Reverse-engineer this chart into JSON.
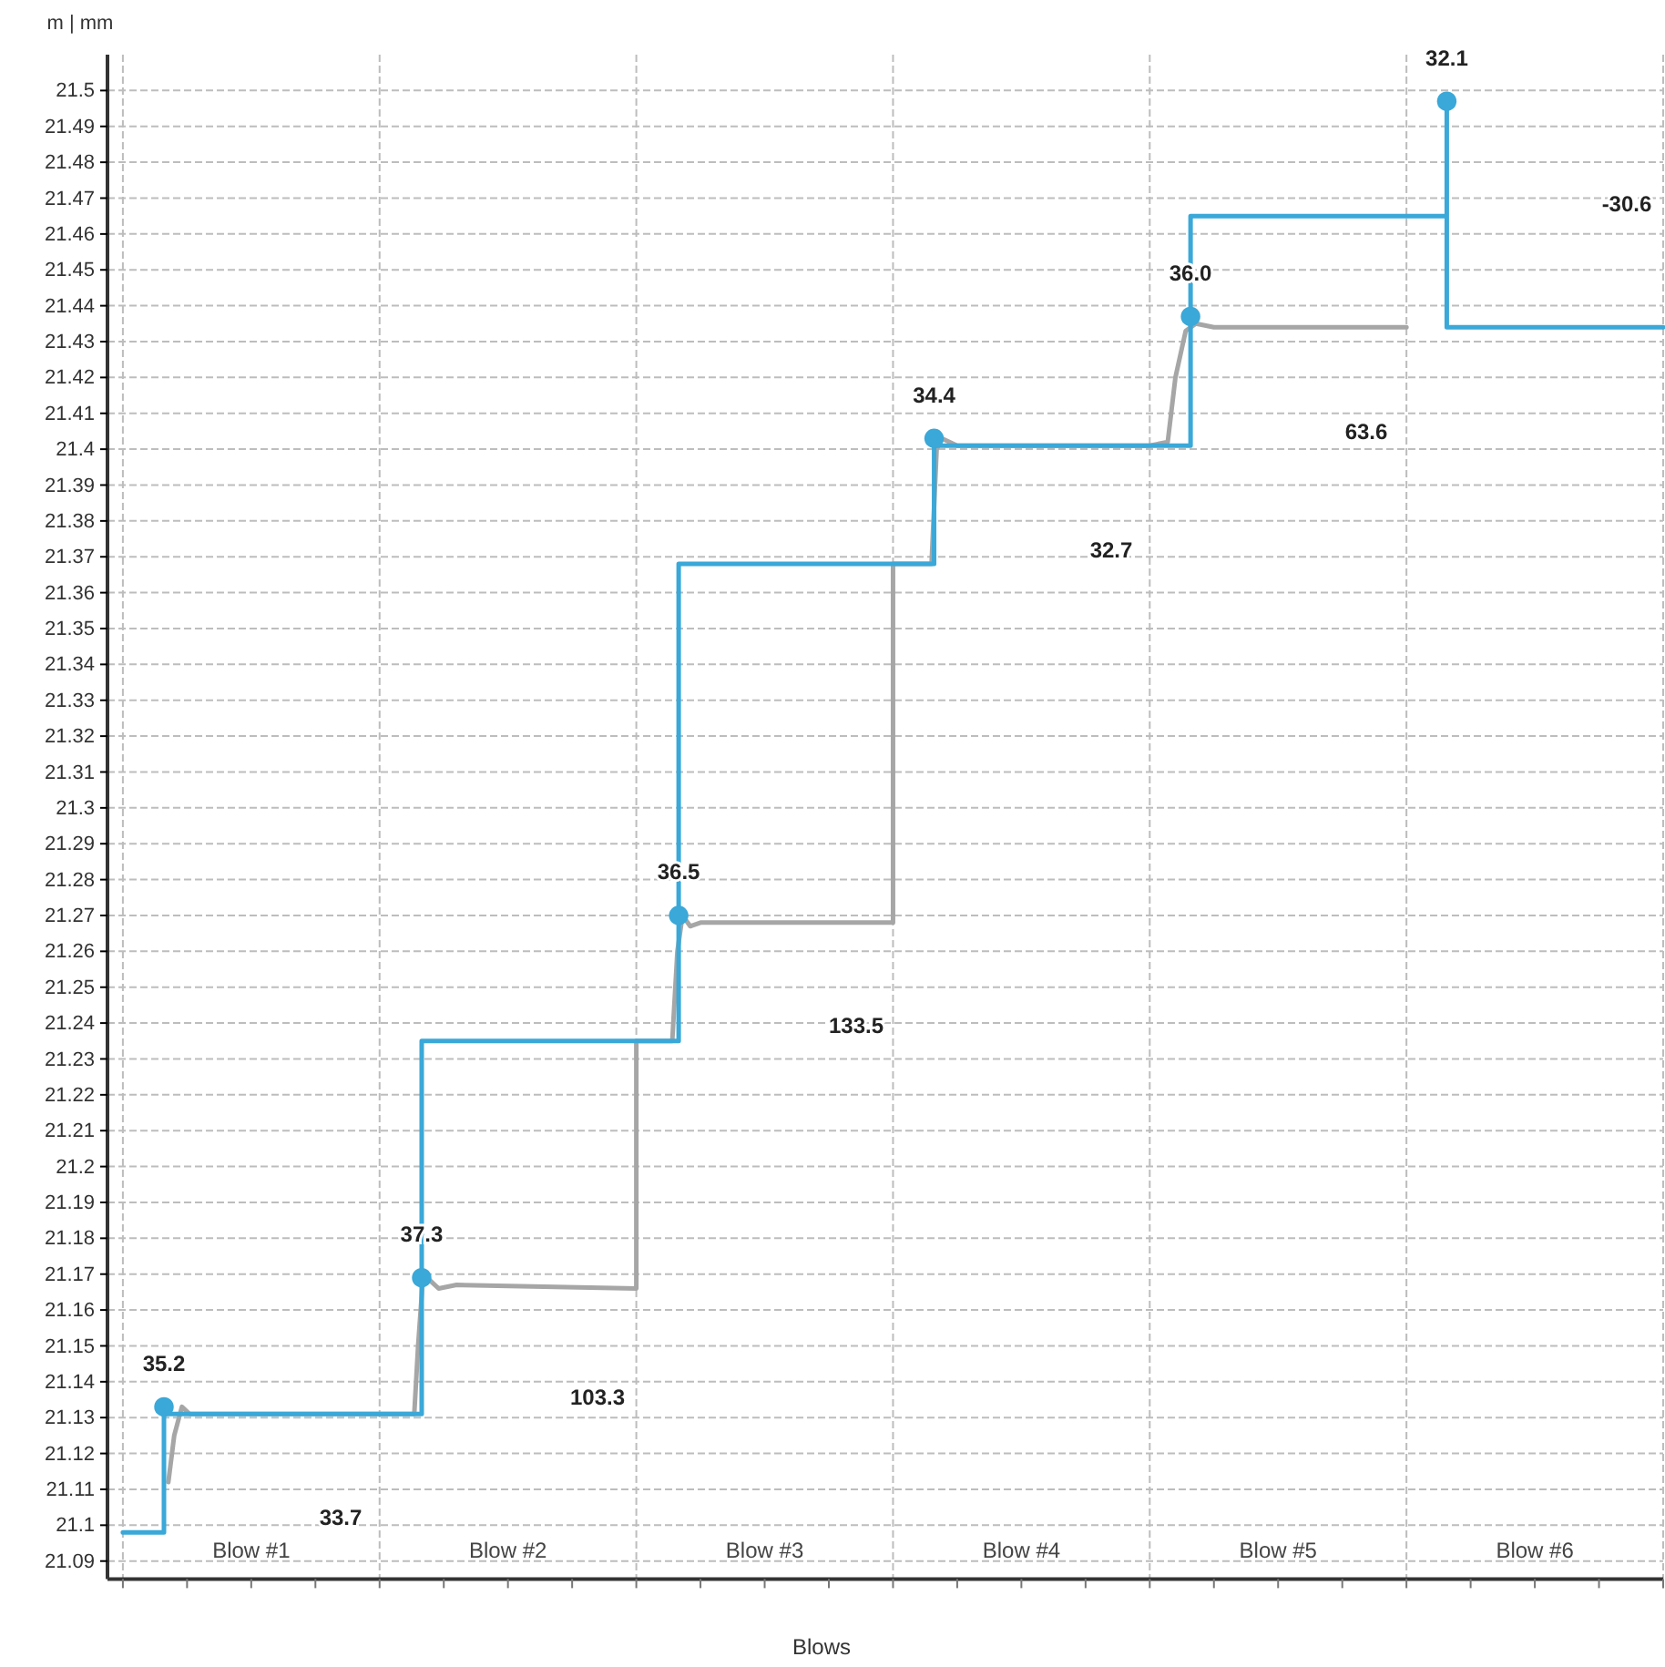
{
  "chart_data": {
    "type": "line",
    "xlabel": "Blows",
    "ylabel": "m | mm",
    "xlim": [
      -0.06,
      6
    ],
    "ylim": [
      21.085,
      21.51
    ],
    "xticks": [
      {
        "value": 0,
        "label": null
      },
      {
        "value": 0.25,
        "label": null
      },
      {
        "value": 0.5,
        "label": "Blow #1"
      },
      {
        "value": 0.75,
        "label": null
      },
      {
        "value": 1,
        "label": null
      },
      {
        "value": 1.25,
        "label": null
      },
      {
        "value": 1.5,
        "label": "Blow #2"
      },
      {
        "value": 1.75,
        "label": null
      },
      {
        "value": 2,
        "label": null
      },
      {
        "value": 2.25,
        "label": null
      },
      {
        "value": 2.5,
        "label": "Blow #3"
      },
      {
        "value": 2.75,
        "label": null
      },
      {
        "value": 3,
        "label": null
      },
      {
        "value": 3.25,
        "label": null
      },
      {
        "value": 3.5,
        "label": "Blow #4"
      },
      {
        "value": 3.75,
        "label": null
      },
      {
        "value": 4,
        "label": null
      },
      {
        "value": 4.25,
        "label": null
      },
      {
        "value": 4.5,
        "label": "Blow #5"
      },
      {
        "value": 4.75,
        "label": null
      },
      {
        "value": 5,
        "label": null
      },
      {
        "value": 5.25,
        "label": null
      },
      {
        "value": 5.5,
        "label": "Blow #6"
      },
      {
        "value": 5.75,
        "label": null
      },
      {
        "value": 6,
        "label": null
      }
    ],
    "yticks": [
      21.09,
      21.1,
      21.11,
      21.12,
      21.13,
      21.14,
      21.15,
      21.16,
      21.17,
      21.18,
      21.19,
      21.2,
      21.21,
      21.22,
      21.23,
      21.24,
      21.25,
      21.26,
      21.27,
      21.28,
      21.29,
      21.3,
      21.31,
      21.32,
      21.33,
      21.34,
      21.35,
      21.36,
      21.37,
      21.38,
      21.39,
      21.4,
      21.41,
      21.42,
      21.43,
      21.44,
      21.45,
      21.46,
      21.47,
      21.48,
      21.49,
      21.5
    ],
    "grid": true,
    "series": [
      {
        "color": "#a6a6a6",
        "x": [
          0.177,
          0.2,
          0.23,
          0.26,
          0.3,
          1.0,
          1.135,
          1.15,
          1.17,
          1.2,
          1.23,
          1.3,
          2.0,
          2.0,
          2.14,
          2.16,
          2.18,
          2.21,
          2.25,
          3.0,
          3.0,
          3.15,
          3.17,
          3.19,
          3.25,
          4.0,
          4.07,
          4.1,
          4.14,
          4.18,
          4.25,
          5.0
        ],
        "values": [
          21.112,
          21.125,
          21.133,
          21.131,
          21.131,
          21.131,
          21.131,
          21.15,
          21.17,
          21.168,
          21.166,
          21.167,
          21.166,
          21.235,
          21.235,
          21.26,
          21.27,
          21.267,
          21.268,
          21.268,
          21.368,
          21.368,
          21.4,
          21.403,
          21.401,
          21.401,
          21.402,
          21.42,
          21.433,
          21.435,
          21.434,
          21.434
        ]
      },
      {
        "color": "#3aa8d8",
        "x": [
          0,
          0.16,
          0.16,
          1.164,
          1.164,
          2.165,
          2.165,
          3.16,
          3.16,
          4.159,
          4.159,
          5.157,
          5.157,
          5.157,
          6
        ],
        "values": [
          21.098,
          21.098,
          21.131,
          21.131,
          21.235,
          21.235,
          21.368,
          21.368,
          21.401,
          21.401,
          21.465,
          21.465,
          21.497,
          21.434,
          21.434
        ]
      },
      {
        "type": "scatter",
        "marker": "circle",
        "color": "#3aa8d8",
        "x": [
          0.16,
          1.164,
          2.165,
          3.16,
          4.159,
          5.157
        ],
        "values": [
          21.133,
          21.169,
          21.27,
          21.403,
          21.437,
          21.497
        ]
      }
    ],
    "annotations": [
      {
        "text": "35.2",
        "x": 0.16,
        "y": 21.133
      },
      {
        "text": "37.3",
        "x": 1.164,
        "y": 21.169
      },
      {
        "text": "36.5",
        "x": 2.165,
        "y": 21.27
      },
      {
        "text": "34.4",
        "x": 3.16,
        "y": 21.403
      },
      {
        "text": "36.0",
        "x": 4.159,
        "y": 21.437
      },
      {
        "text": "32.1",
        "x": 5.157,
        "y": 21.497
      },
      "33.7",
      "103.3",
      "133.5",
      "32.7",
      "63.6",
      "-30.6"
    ]
  }
}
